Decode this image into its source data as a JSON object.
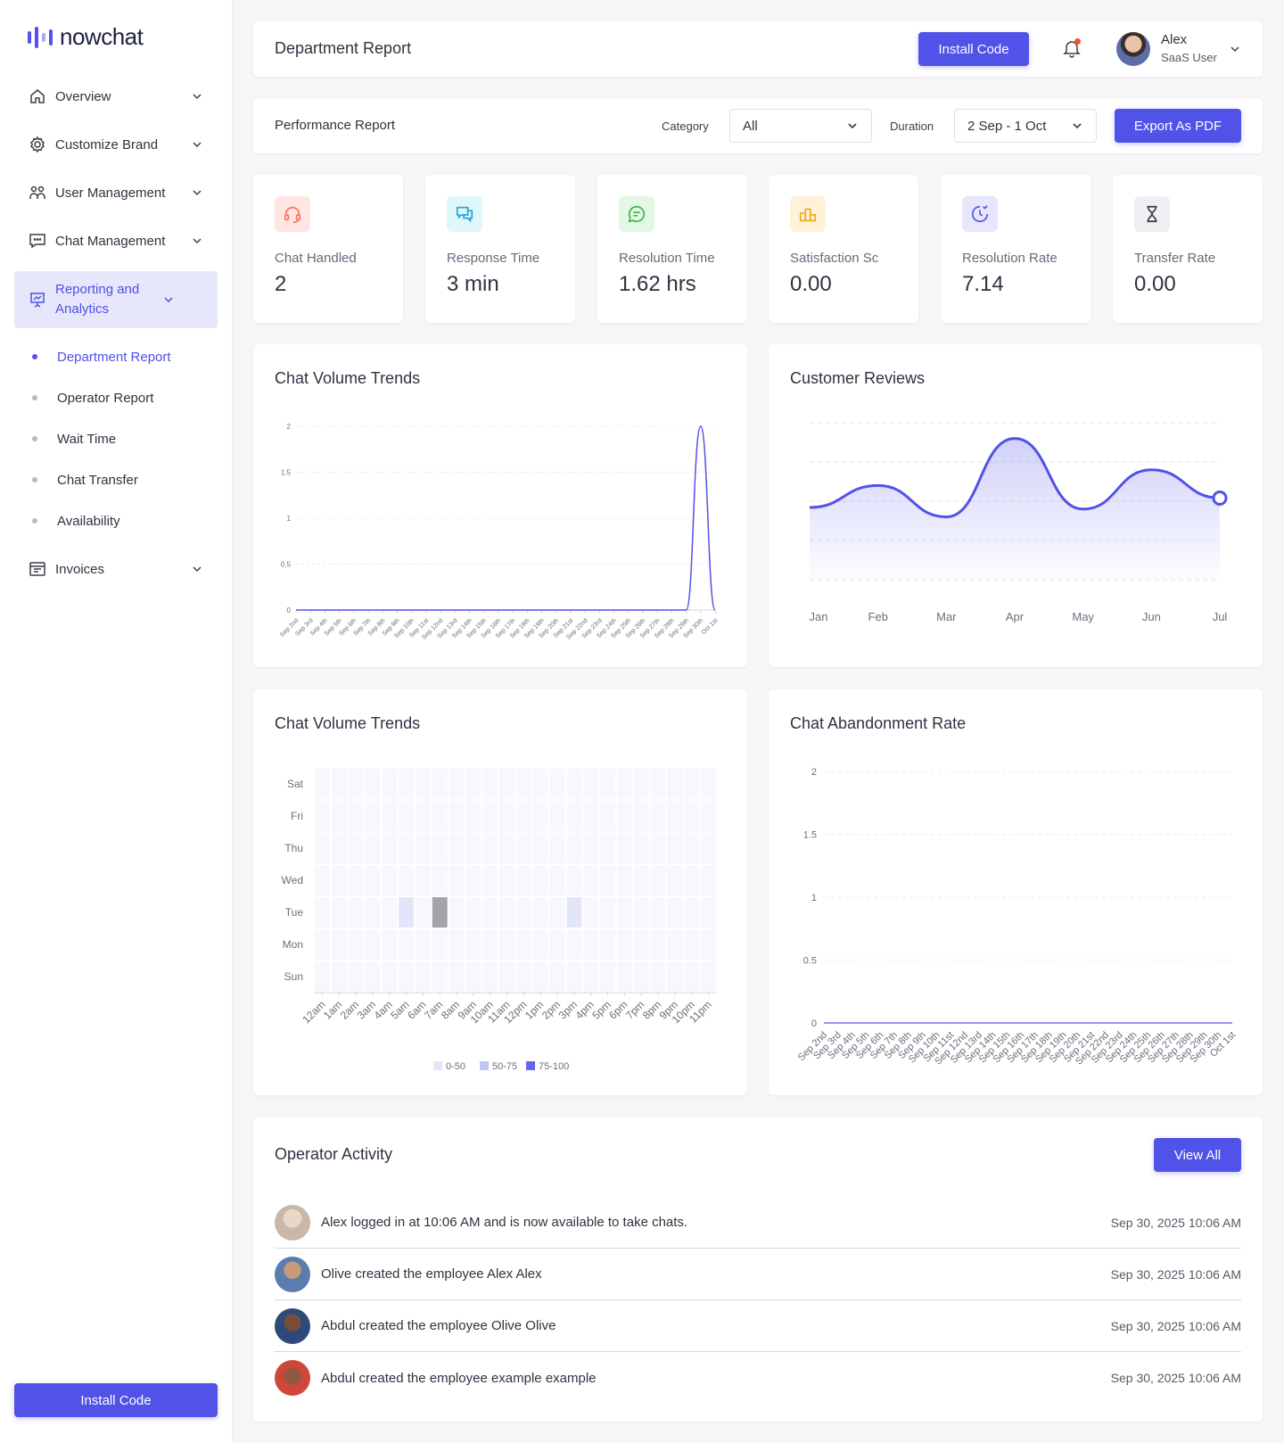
{
  "brand": {
    "name": "nowchat",
    "accent": "#5052e8"
  },
  "sidebar": {
    "items": [
      {
        "label": "Overview",
        "icon": "home-icon"
      },
      {
        "label": "Customize Brand",
        "icon": "gear-icon"
      },
      {
        "label": "User Management",
        "icon": "users-icon"
      },
      {
        "label": "Chat Management",
        "icon": "chat-icon"
      },
      {
        "label": "Reporting and Analytics",
        "icon": "presentation-chart-icon",
        "active": true
      },
      {
        "label": "Invoices",
        "icon": "invoice-icon"
      }
    ],
    "subitems": [
      {
        "label": "Department Report",
        "active": true
      },
      {
        "label": "Operator Report"
      },
      {
        "label": "Wait Time"
      },
      {
        "label": "Chat Transfer"
      },
      {
        "label": "Availability"
      }
    ],
    "install_label": "Install Code"
  },
  "header": {
    "title": "Department Report",
    "install_label": "Install Code",
    "user": {
      "name": "Alex",
      "role": "SaaS User"
    }
  },
  "filters": {
    "title": "Performance Report",
    "category_label": "Category",
    "category_value": "All",
    "duration_label": "Duration",
    "duration_value": "2 Sep - 1 Oct",
    "export_label": "Export As PDF"
  },
  "stats": [
    {
      "label": "Chat Handled",
      "value": "2",
      "icon": "headset-icon",
      "color": "#ff6b57",
      "bg": "#ffe6e2"
    },
    {
      "label": "Response Time",
      "value": "3 min",
      "icon": "chats-icon",
      "color": "#1aa6d1",
      "bg": "#dff6fb"
    },
    {
      "label": "Resolution Time",
      "value": "1.62 hrs",
      "icon": "message-icon",
      "color": "#3bb54a",
      "bg": "#e2f7e4"
    },
    {
      "label": "Satisfaction Sc",
      "value": "0.00",
      "icon": "podium-icon",
      "color": "#f2a91b",
      "bg": "#fff2d9"
    },
    {
      "label": "Resolution Rate",
      "value": "7.14",
      "icon": "clock-check-icon",
      "color": "#5052e8",
      "bg": "#e6e7fb"
    },
    {
      "label": "Transfer Rate",
      "value": "0.00",
      "icon": "hourglass-icon",
      "color": "#3a3d48",
      "bg": "#eef0f3"
    }
  ],
  "chart_data": [
    {
      "type": "line",
      "title": "Chat Volume Trends",
      "x": [
        "Sep 2nd",
        "Sep 3rd",
        "Sep 4th",
        "Sep 5th",
        "Sep 6th",
        "Sep 7th",
        "Sep 8th",
        "Sep 9th",
        "Sep 10th",
        "Sep 11st",
        "Sep 12nd",
        "Sep 13rd",
        "Sep 14th",
        "Sep 15th",
        "Sep 16th",
        "Sep 17th",
        "Sep 18th",
        "Sep 19th",
        "Sep 20th",
        "Sep 21st",
        "Sep 22nd",
        "Sep 23rd",
        "Sep 24th",
        "Sep 25th",
        "Sep 26th",
        "Sep 27th",
        "Sep 28th",
        "Sep 29th",
        "Sep 30th",
        "Oct 1st"
      ],
      "series": [
        {
          "values": [
            0,
            0,
            0,
            0,
            0,
            0,
            0,
            0,
            0,
            0,
            0,
            0,
            0,
            0,
            0,
            0,
            0,
            0,
            0,
            0,
            0,
            0,
            0,
            0,
            0,
            0,
            0,
            0,
            2,
            0
          ]
        }
      ],
      "ylim": [
        0,
        2
      ],
      "yticks": [
        "0",
        "0.5",
        "1",
        "1.5",
        "2"
      ],
      "grid": true
    },
    {
      "type": "area",
      "title": "Customer Reviews",
      "categories": [
        "Jan",
        "Feb",
        "Mar",
        "Apr",
        "May",
        "Jun",
        "Jul"
      ],
      "series": [
        {
          "values": [
            46,
            60,
            40,
            90,
            45,
            70,
            52
          ]
        }
      ],
      "ylim": [
        0,
        100
      ],
      "grid": true
    },
    {
      "type": "heatmap",
      "title": "Chat Volume Trends",
      "x": [
        "12am",
        "1am",
        "2am",
        "3am",
        "4am",
        "5am",
        "6am",
        "7am",
        "8am",
        "9am",
        "10am",
        "11am",
        "12pm",
        "1pm",
        "2pm",
        "3pm",
        "4pm",
        "5pm",
        "6pm",
        "7pm",
        "8pm",
        "9pm",
        "10pm",
        "11pm"
      ],
      "y": [
        "Sat",
        "Fri",
        "Thu",
        "Wed",
        "Tue",
        "Mon",
        "Sun"
      ],
      "cells": [
        {
          "day": "Tue",
          "hour": "5am",
          "level": "0-50"
        },
        {
          "day": "Tue",
          "hour": "7am",
          "level": "highlight"
        },
        {
          "day": "Tue",
          "hour": "3pm",
          "level": "0-50"
        }
      ],
      "legend": [
        {
          "label": "0-50",
          "color": "#e3e6fb"
        },
        {
          "label": "50-75",
          "color": "#bfc5f6"
        },
        {
          "label": "75-100",
          "color": "#6366f1"
        }
      ]
    },
    {
      "type": "line",
      "title": "Chat Abandonment Rate",
      "x": [
        "Sep 2nd",
        "Sep 3rd",
        "Sep 4th",
        "Sep 5th",
        "Sep 6th",
        "Sep 7th",
        "Sep 8th",
        "Sep 9th",
        "Sep 10th",
        "Sep 11st",
        "Sep 12nd",
        "Sep 13rd",
        "Sep 14th",
        "Sep 15th",
        "Sep 16th",
        "Sep 17th",
        "Sep 18th",
        "Sep 19th",
        "Sep 20th",
        "Sep 21st",
        "Sep 22nd",
        "Sep 23rd",
        "Sep 24th",
        "Sep 25th",
        "Sep 26th",
        "Sep 27th",
        "Sep 28th",
        "Sep 29th",
        "Sep 30th",
        "Oct 1st"
      ],
      "series": [
        {
          "values": [
            0,
            0,
            0,
            0,
            0,
            0,
            0,
            0,
            0,
            0,
            0,
            0,
            0,
            0,
            0,
            0,
            0,
            0,
            0,
            0,
            0,
            0,
            0,
            0,
            0,
            0,
            0,
            0,
            0,
            0
          ]
        }
      ],
      "ylim": [
        0,
        2
      ],
      "yticks": [
        "0",
        "0.5",
        "1",
        "1.5",
        "2"
      ],
      "grid": true
    }
  ],
  "activity": {
    "title": "Operator Activity",
    "view_all": "View All",
    "rows": [
      {
        "text": "Alex logged in at 10:06 AM and is now available to take chats.",
        "time": "Sep 30, 2025 10:06 AM",
        "avatar_color": "#c9b7a8"
      },
      {
        "text": "Olive created the employee Alex Alex",
        "time": "Sep 30, 2025 10:06 AM",
        "avatar_color": "#8a6a55"
      },
      {
        "text": "Abdul created the employee Olive Olive",
        "time": "Sep 30, 2025 10:06 AM",
        "avatar_color": "#3c4a6b"
      },
      {
        "text": "Abdul created the employee example example",
        "time": "Sep 30, 2025 10:06 AM",
        "avatar_color": "#b84a3a"
      }
    ]
  }
}
